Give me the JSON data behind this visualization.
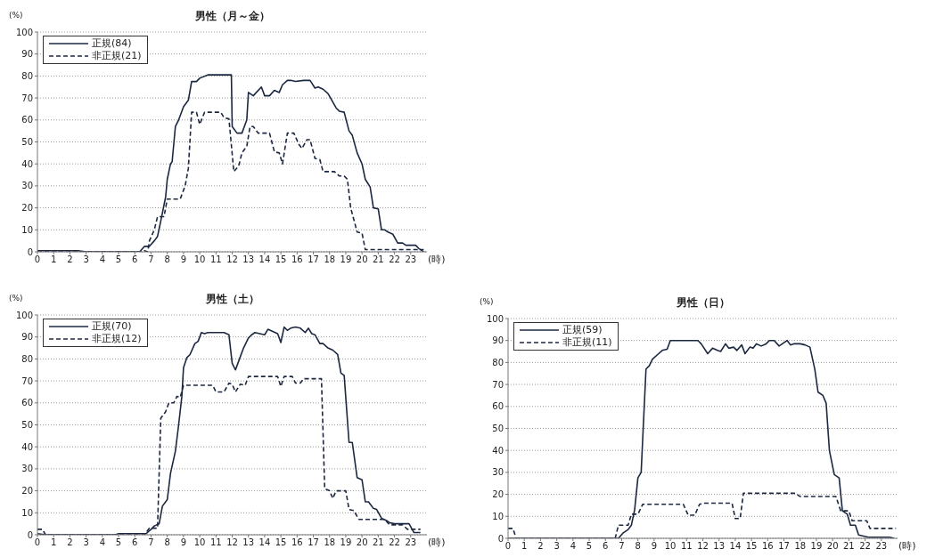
{
  "chart_data": [
    {
      "type": "line",
      "title": "男性（月～金）",
      "ylabel": "(%)",
      "xlabel": "(時)",
      "xlim": [
        0,
        24
      ],
      "xticks": [
        0,
        1,
        2,
        3,
        4,
        5,
        6,
        7,
        8,
        9,
        10,
        11,
        12,
        13,
        14,
        15,
        16,
        17,
        18,
        19,
        20,
        21,
        22,
        23
      ],
      "ylim": [
        0,
        100
      ],
      "yticks": [
        0,
        10,
        20,
        30,
        40,
        50,
        60,
        70,
        80,
        90,
        100
      ],
      "grid": "y",
      "legend": "top left",
      "series": [
        {
          "name": "正規(84)",
          "color": "#1c2841",
          "line_style": "solid",
          "x": [
            0,
            2.5,
            3,
            6.3,
            6.6,
            6.9,
            7.2,
            7.4,
            7.6,
            7.9,
            8.0,
            8.2,
            8.3,
            8.5,
            8.7,
            9.0,
            9.3,
            9.5,
            9.8,
            10,
            10.5,
            11.5,
            11.95,
            12.0,
            12.3,
            12.6,
            12.9,
            13.0,
            13.3,
            13.8,
            14.0,
            14.3,
            14.6,
            14.9,
            15.1,
            15.4,
            15.6,
            15.9,
            16.4,
            16.8,
            17.1,
            17.3,
            17.6,
            17.9,
            18.1,
            18.4,
            18.6,
            18.9,
            19.2,
            19.4,
            19.7,
            20.0,
            20.2,
            20.5,
            20.7,
            21.0,
            21.2,
            21.4,
            21.6,
            21.9,
            22.2,
            22.5,
            22.7,
            23.3,
            23.5,
            23.8
          ],
          "values": [
            0.5,
            0.5,
            0,
            0,
            2.5,
            2.5,
            5,
            7,
            14,
            25,
            33,
            40,
            41,
            57,
            60,
            66,
            69,
            77.5,
            77.5,
            79,
            80.5,
            80.5,
            80.5,
            57,
            54,
            54,
            60,
            72.5,
            71,
            75,
            71,
            71,
            73.5,
            72.5,
            76,
            78,
            78,
            77.5,
            78,
            78,
            74.5,
            75,
            74,
            72,
            69.5,
            65.5,
            64,
            63.5,
            55,
            53,
            45,
            40,
            33,
            29.5,
            20,
            19.5,
            10,
            10,
            9,
            8,
            4,
            4,
            3,
            3,
            1.5,
            0
          ]
        },
        {
          "name": "非正規(21)",
          "color": "#1c2841",
          "line_style": "dashed",
          "x": [
            0,
            6.5,
            6.6,
            6.8,
            6.9,
            7.2,
            7.4,
            7.8,
            8.0,
            8.8,
            9.1,
            9.3,
            9.5,
            9.8,
            10.0,
            10.3,
            11.3,
            11.5,
            11.8,
            12.1,
            12.4,
            12.6,
            12.9,
            13.1,
            13.3,
            13.6,
            14.3,
            14.6,
            14.9,
            15.1,
            15.4,
            15.8,
            16.1,
            16.3,
            16.6,
            16.8,
            17.1,
            17.4,
            17.6,
            18.3,
            18.6,
            18.9,
            19.1,
            19.3,
            19.7,
            20.0,
            20.2,
            23.8
          ],
          "values": [
            0,
            0,
            0.5,
            0,
            5,
            10,
            16,
            16,
            24,
            24,
            30,
            38,
            63.5,
            63.5,
            58,
            63.5,
            63.5,
            61,
            60.5,
            36.5,
            39,
            45,
            48,
            57,
            57,
            54,
            54,
            45.5,
            45,
            40,
            54,
            54,
            49,
            47,
            51,
            51,
            42.5,
            42,
            36.5,
            36.5,
            34.5,
            34.5,
            33,
            20,
            9,
            8.5,
            1,
            1
          ]
        }
      ]
    },
    {
      "type": "line",
      "title": "男性（土）",
      "ylabel": "(%)",
      "xlabel": "(時)",
      "xlim": [
        0,
        24
      ],
      "xticks": [
        0,
        1,
        2,
        3,
        4,
        5,
        6,
        7,
        8,
        9,
        10,
        11,
        12,
        13,
        14,
        15,
        16,
        17,
        18,
        19,
        20,
        21,
        22,
        23
      ],
      "ylim": [
        0,
        100
      ],
      "yticks": [
        0,
        10,
        20,
        30,
        40,
        50,
        60,
        70,
        80,
        90,
        100
      ],
      "grid": "y",
      "legend": "top left",
      "series": [
        {
          "name": "正規(70)",
          "color": "#1c2841",
          "line_style": "solid",
          "x": [
            0,
            0.5,
            4.8,
            5.0,
            6.7,
            7.0,
            7.2,
            7.5,
            7.7,
            8.0,
            8.2,
            8.5,
            8.7,
            8.9,
            9.0,
            9.2,
            9.4,
            9.7,
            9.9,
            10.1,
            10.3,
            10.5,
            11.5,
            11.8,
            12.0,
            12.2,
            12.4,
            12.7,
            13.0,
            13.2,
            13.4,
            13.7,
            14.0,
            14.2,
            14.5,
            14.8,
            15.0,
            15.2,
            15.4,
            15.6,
            15.9,
            16.2,
            16.5,
            16.7,
            16.9,
            17.1,
            17.4,
            17.6,
            17.9,
            18.2,
            18.5,
            18.7,
            18.9,
            19.2,
            19.4,
            19.7,
            20.0,
            20.2,
            20.4,
            20.7,
            20.9,
            21.2,
            21.5,
            21.7,
            22.0,
            22.9,
            23.2,
            23.6
          ],
          "values": [
            0.5,
            0,
            0,
            0.5,
            0.5,
            2.5,
            4,
            5,
            13,
            16,
            28,
            38,
            50,
            63,
            76,
            80.5,
            82,
            87,
            88,
            92,
            91.5,
            92,
            92,
            91,
            78,
            75,
            79,
            85,
            89.5,
            91,
            92,
            91.5,
            91,
            93.5,
            92.5,
            91.5,
            87.5,
            94.5,
            93,
            94,
            94.5,
            94,
            92,
            94,
            91.5,
            91,
            87,
            87,
            85,
            84,
            82,
            73.5,
            72.5,
            42,
            42,
            26,
            25,
            15,
            15,
            12,
            11.5,
            7.5,
            6.5,
            5.5,
            5,
            5,
            1,
            1
          ]
        },
        {
          "name": "非正規(12)",
          "color": "#1c2841",
          "line_style": "dashed",
          "x": [
            0,
            0.3,
            0.5,
            6.6,
            6.9,
            7.4,
            7.6,
            7.9,
            8.1,
            8.4,
            8.6,
            8.8,
            9.0,
            10.8,
            11.0,
            11.5,
            11.8,
            12.0,
            12.2,
            12.5,
            12.8,
            13.0,
            14.8,
            15.0,
            15.2,
            15.7,
            15.9,
            16.2,
            16.4,
            17.5,
            17.7,
            18.0,
            18.2,
            18.4,
            19.0,
            19.2,
            19.5,
            19.8,
            21.4,
            21.7,
            22.5,
            22.8,
            23.6
          ],
          "values": [
            2.5,
            2.5,
            0,
            0,
            3,
            3,
            53,
            56,
            60,
            60,
            63,
            62.5,
            68,
            68,
            65,
            65,
            69,
            68.5,
            65,
            68.5,
            68,
            72,
            72,
            67.5,
            72,
            72,
            69,
            69,
            71,
            71,
            21,
            20,
            16.5,
            20,
            20,
            11.5,
            11,
            7,
            7,
            4.5,
            4.5,
            2.5,
            2.5
          ]
        }
      ]
    },
    {
      "type": "line",
      "title": "男性（日）",
      "ylabel": "(%)",
      "xlabel": "(時)",
      "xlim": [
        0,
        24
      ],
      "xticks": [
        0,
        1,
        2,
        3,
        4,
        5,
        6,
        7,
        8,
        9,
        10,
        11,
        12,
        13,
        14,
        15,
        16,
        17,
        18,
        19,
        20,
        21,
        22,
        23
      ],
      "ylim": [
        0,
        100
      ],
      "yticks": [
        0,
        10,
        20,
        30,
        40,
        50,
        60,
        70,
        80,
        90,
        100
      ],
      "grid": "y",
      "legend": "top left",
      "series": [
        {
          "name": "正規(59)",
          "color": "#1c2841",
          "line_style": "solid",
          "x": [
            0,
            6.8,
            7.1,
            7.4,
            7.6,
            7.8,
            8.0,
            8.2,
            8.5,
            8.7,
            8.9,
            9.2,
            9.5,
            9.8,
            10.0,
            11.7,
            11.9,
            12.3,
            12.6,
            12.9,
            13.1,
            13.4,
            13.6,
            13.9,
            14.1,
            14.4,
            14.6,
            14.9,
            15.1,
            15.3,
            15.6,
            15.9,
            16.1,
            16.4,
            16.7,
            16.9,
            17.2,
            17.4,
            17.6,
            18.0,
            18.3,
            18.6,
            18.9,
            19.1,
            19.4,
            19.6,
            19.8,
            20.1,
            20.4,
            20.6,
            20.9,
            21.1,
            21.4,
            21.6,
            21.9,
            22.2,
            23.5,
            23.8
          ],
          "values": [
            0,
            0,
            2.5,
            4,
            6,
            13,
            27.5,
            30,
            77,
            78.5,
            81.5,
            83.5,
            85.5,
            86,
            90,
            90,
            88.5,
            84,
            86.5,
            85.5,
            85,
            88.5,
            86.5,
            87,
            85.5,
            88,
            84,
            87,
            86.5,
            88.5,
            87.5,
            88.5,
            90,
            90,
            87.5,
            88.5,
            90,
            88,
            88.5,
            88.5,
            88,
            87,
            77,
            66.5,
            65,
            61.5,
            40,
            29,
            27.5,
            12.5,
            11,
            6,
            6,
            1.5,
            1,
            0.5,
            0.5,
            0
          ]
        },
        {
          "name": "非正規(11)",
          "color": "#1c2841",
          "line_style": "dashed",
          "x": [
            0,
            0.3,
            0.5,
            6.6,
            6.8,
            7.4,
            7.6,
            8.0,
            8.3,
            10.8,
            11.1,
            11.5,
            11.8,
            12.1,
            13.8,
            14.0,
            14.3,
            14.5,
            17.7,
            18.0,
            20.2,
            20.5,
            21.0,
            21.2,
            22.1,
            22.3,
            23.9
          ],
          "values": [
            4.5,
            4.5,
            0,
            0,
            6,
            6,
            11,
            11,
            15.5,
            15.5,
            10.5,
            10.5,
            15.5,
            16,
            16,
            9,
            9,
            20.5,
            20.5,
            19,
            19,
            12.5,
            12.5,
            8,
            8,
            4.5,
            4.5
          ]
        }
      ]
    }
  ]
}
